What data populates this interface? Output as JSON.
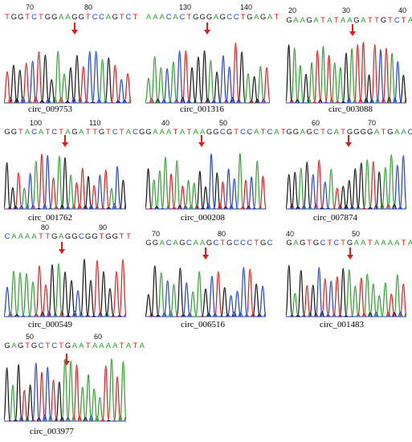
{
  "colors": {
    "A": "#2ca02c",
    "T": "#e41a1c",
    "G": "#111111",
    "C": "#1f3fd0",
    "arrow": "#e41a1c"
  },
  "panels": [
    {
      "label": "circ_009753",
      "sequence": "TGGTCTGGAAGGTCCAGTCT",
      "positions": [
        "70",
        "80"
      ]
    },
    {
      "label": "circ_001316",
      "sequence": "AAACACTGGGAGCCTGAGAT",
      "positions": [
        "130",
        "140"
      ]
    },
    {
      "label": "circ_003088",
      "sequence": "GAAGATATAAGATTGTCTACG",
      "positions": [
        "20",
        "30",
        "40"
      ]
    },
    {
      "label": "circ_001762",
      "sequence": "GGTACATCTAGATTGTCTACG",
      "positions": [
        "100",
        "110"
      ]
    },
    {
      "label": "circ_000208",
      "sequence": "GAAATATAAGGCGTCCATCAT",
      "positions": [
        "40",
        "50"
      ]
    },
    {
      "label": "circ_007874",
      "sequence": "GGAGCTCATGGGGATGAACC",
      "positions": [
        "60",
        "70"
      ]
    },
    {
      "label": "circ_000549",
      "sequence": "CAAAATTGAGGCGGTGGTT",
      "positions": [
        "80",
        "90"
      ]
    },
    {
      "label": "circ_006516",
      "sequence": "GGACAGCAAGCTGCCCTGC",
      "positions": [
        "70",
        "80"
      ]
    },
    {
      "label": "circ_001483",
      "sequence": "GAGTGCTCTGAATAAAATAT",
      "positions": [
        "40",
        "50"
      ]
    },
    {
      "label": "circ_003977",
      "sequence": "GAGTGCTCTGAATAAAATATA",
      "positions": [
        "50",
        "60"
      ]
    }
  ]
}
